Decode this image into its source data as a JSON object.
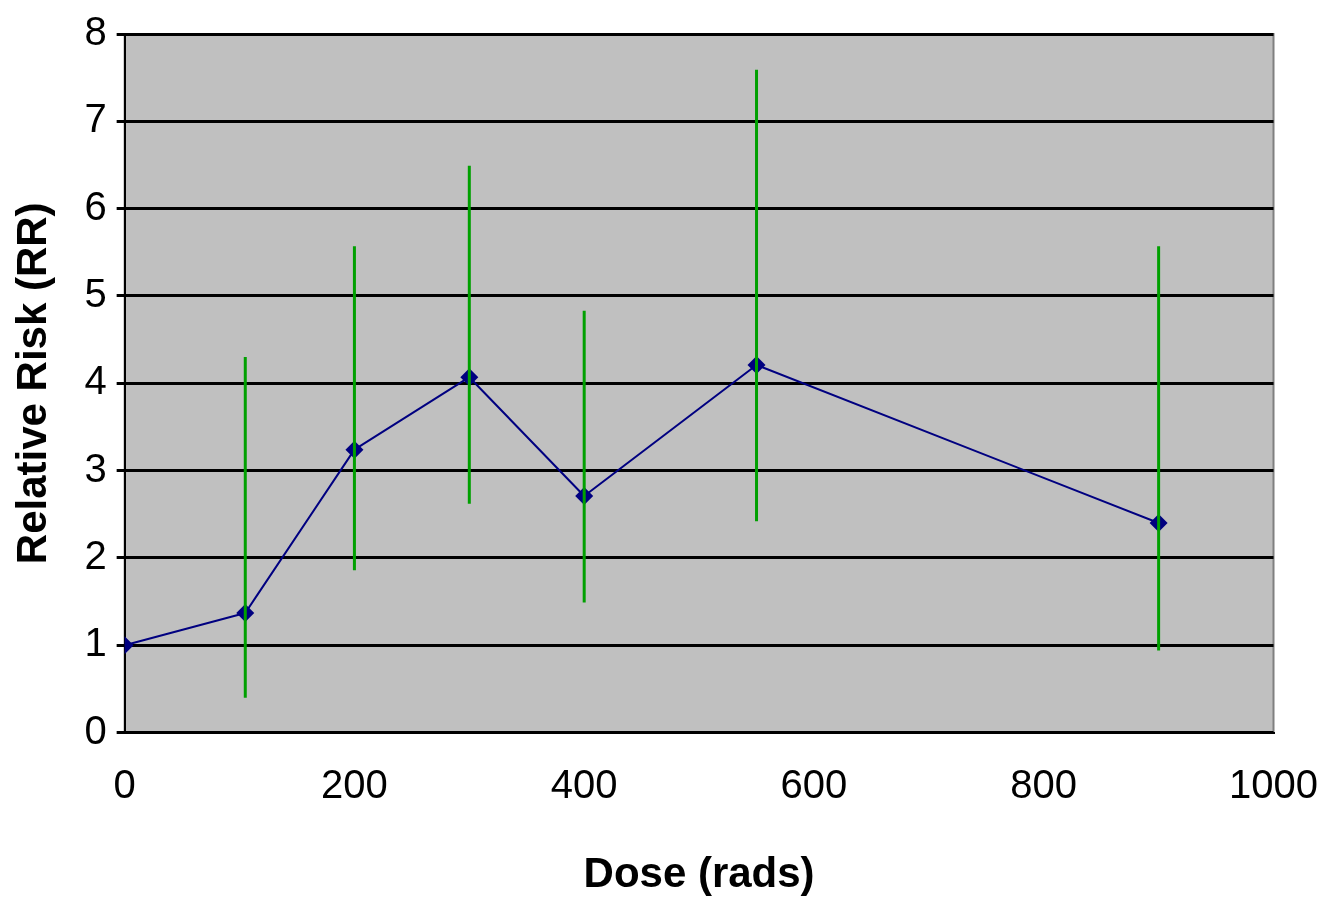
{
  "chart_data": {
    "type": "line",
    "xlabel": "Dose (rads)",
    "ylabel": "Relative Risk (RR)",
    "x": [
      0,
      105,
      200,
      300,
      400,
      550,
      900
    ],
    "series": [
      {
        "color": "#000080",
        "values": [
          1.0,
          1.37,
          3.24,
          4.07,
          2.71,
          4.21,
          2.4
        ],
        "errors": [
          null,
          [
            0.4,
            4.3
          ],
          [
            1.86,
            5.57
          ],
          [
            2.62,
            6.49
          ],
          [
            1.49,
            4.83
          ],
          [
            2.42,
            7.59
          ],
          [
            0.94,
            5.57
          ]
        ]
      }
    ],
    "xlim": [
      0,
      1000
    ],
    "xticks": [
      0,
      200,
      400,
      600,
      800,
      1000
    ],
    "ylim": [
      0,
      8
    ],
    "yticks": [
      0,
      1,
      2,
      3,
      4,
      5,
      6,
      7,
      8
    ],
    "grid": "y",
    "legend": false,
    "marker": "diamond",
    "line_style": "solid"
  }
}
